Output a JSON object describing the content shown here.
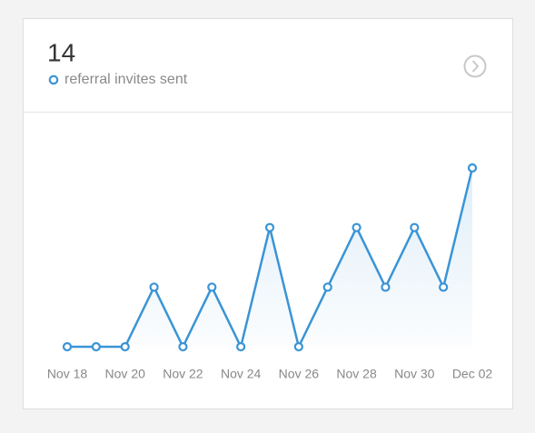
{
  "chart_data": {
    "type": "line",
    "total": 14,
    "categories": [
      "Nov 18",
      null,
      "Nov 20",
      null,
      "Nov 22",
      null,
      "Nov 24",
      null,
      "Nov 26",
      null,
      "Nov 28",
      null,
      "Nov 30",
      null,
      "Dec 02"
    ],
    "series": [
      {
        "name": "referral invites sent",
        "color": "#3a94d5",
        "values": [
          0,
          0,
          0,
          1,
          0,
          1,
          0,
          2,
          0,
          1,
          2,
          1,
          2,
          1,
          3
        ]
      }
    ]
  }
}
